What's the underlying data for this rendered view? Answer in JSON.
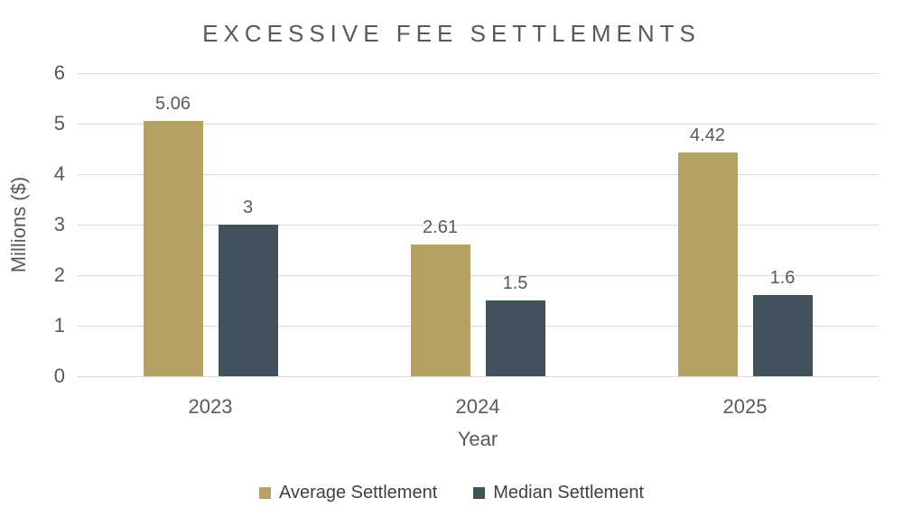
{
  "colors": {
    "average_series": "#B5A165",
    "median_series": "#42525C",
    "gridline": "#D9D9D9",
    "axis_text": "#595959",
    "title_text": "#595959",
    "legend_text": "#404040",
    "background": "#FFFFFF"
  },
  "chart_data": {
    "type": "bar",
    "title": "EXCESSIVE FEE SETTLEMENTS",
    "categories": [
      "2023",
      "2024",
      "2025"
    ],
    "series": [
      {
        "name": "Average Settlement",
        "color": "#B5A165",
        "values": [
          5.06,
          2.61,
          4.42
        ],
        "labels": [
          "5.06",
          "2.61",
          "4.42"
        ]
      },
      {
        "name": "Median Settlement",
        "color": "#42525C",
        "values": [
          3,
          1.5,
          1.6
        ],
        "labels": [
          "3",
          "1.5",
          "1.6"
        ]
      }
    ],
    "xlabel": "Year",
    "ylabel": "Millions ($)",
    "ylim": [
      0,
      6
    ],
    "ytick_interval": 1,
    "yticks": [
      "6",
      "5",
      "4",
      "3",
      "2",
      "1",
      "0"
    ],
    "grid": true,
    "legend_position": "bottom"
  }
}
